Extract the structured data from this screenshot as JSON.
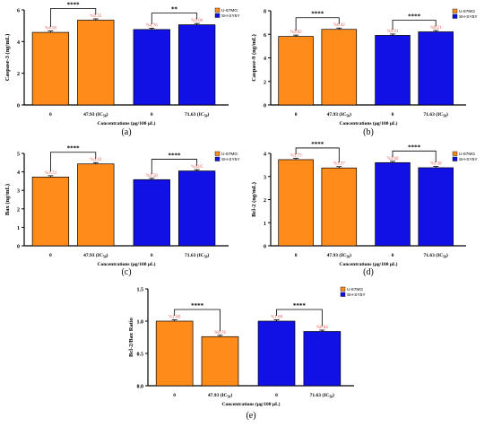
{
  "colors": {
    "series1": "#FF8C1A",
    "series2": "#1111E6",
    "value_label": "#E8574F",
    "axis": "#000000"
  },
  "chart_data": [
    {
      "type": "bar",
      "panel_label": "(a)",
      "ylabel": "Caspase-3 (ng/mL)",
      "xlabel": "Concentrations (µg/100 µL)",
      "ylim": [
        0,
        6
      ],
      "yticks": [
        "0",
        "2",
        "4",
        "6"
      ],
      "legend": [
        "U-87MG",
        "SH-SY5Y"
      ],
      "legend_position": "top-right",
      "groups": [
        {
          "series": "U-87MG",
          "bars": [
            {
              "category": "0",
              "sub": "",
              "value": 4.58,
              "label": "%4.58"
            },
            {
              "category": "47.93 (IC",
              "sub": "50",
              "value": 5.35,
              "label": "%5.35"
            }
          ],
          "significance": "****"
        },
        {
          "series": "SH-SY5Y",
          "bars": [
            {
              "category": "0",
              "sub": "",
              "value": 4.76,
              "label": "%4.76"
            },
            {
              "category": "71.63 (IC",
              "sub": "50",
              "value": 5.06,
              "label": "%5.06"
            }
          ],
          "significance": "**"
        }
      ]
    },
    {
      "type": "bar",
      "panel_label": "(b)",
      "ylabel": "Caspase-9 (ng/mL)",
      "xlabel": "Concentrations (µg/100 µL)",
      "ylim": [
        0,
        8
      ],
      "yticks": [
        "0",
        "2",
        "4",
        "6",
        "8"
      ],
      "legend": [
        "U-87MG",
        "SH-SY5Y"
      ],
      "legend_position": "top-right",
      "groups": [
        {
          "series": "U-87MG",
          "bars": [
            {
              "category": "0",
              "sub": "",
              "value": 5.82,
              "label": "%5.82"
            },
            {
              "category": "47.93 (IC",
              "sub": "50",
              "value": 6.42,
              "label": "%6.42"
            }
          ],
          "significance": "****"
        },
        {
          "series": "SH-SY5Y",
          "bars": [
            {
              "category": "0",
              "sub": "",
              "value": 5.91,
              "label": "%5.91"
            },
            {
              "category": "71.63 (IC",
              "sub": "50",
              "value": 6.21,
              "label": "%6.21"
            }
          ],
          "significance": "****"
        }
      ]
    },
    {
      "type": "bar",
      "panel_label": "(c)",
      "ylabel": "Bax (ng/mL)",
      "xlabel": "Concentrations (µg/100 µL)",
      "ylim": [
        0,
        5
      ],
      "yticks": [
        "0",
        "1",
        "2",
        "3",
        "4",
        "5"
      ],
      "legend": [
        "U-87MG",
        "SH-SY5Y"
      ],
      "legend_position": "top-right",
      "groups": [
        {
          "series": "U-87MG",
          "bars": [
            {
              "category": "0",
              "sub": "",
              "value": 3.72,
              "label": "%3.72"
            },
            {
              "category": "47.93 (IC",
              "sub": "50",
              "value": 4.43,
              "label": "%4.43"
            }
          ],
          "significance": "****"
        },
        {
          "series": "SH-SY5Y",
          "bars": [
            {
              "category": "0",
              "sub": "",
              "value": 3.58,
              "label": "%3.58"
            },
            {
              "category": "71.63 (IC",
              "sub": "50",
              "value": 4.05,
              "label": "%4.05"
            }
          ],
          "significance": "****"
        }
      ]
    },
    {
      "type": "bar",
      "panel_label": "(d)",
      "ylabel": "Bcl-2 (ng/mL)",
      "xlabel": "Concentrations (µg/100 µL)",
      "ylim": [
        0,
        4
      ],
      "yticks": [
        "0",
        "1",
        "2",
        "3",
        "4"
      ],
      "legend": [
        "U-87MG",
        "SH-SY5Y"
      ],
      "legend_position": "top-right",
      "groups": [
        {
          "series": "U-87MG",
          "bars": [
            {
              "category": "0",
              "sub": "",
              "value": 3.73,
              "label": "%3.73"
            },
            {
              "category": "47.93 (IC",
              "sub": "50",
              "value": 3.37,
              "label": "%3.37"
            }
          ],
          "significance": "****"
        },
        {
          "series": "SH-SY5Y",
          "bars": [
            {
              "category": "0",
              "sub": "",
              "value": 3.6,
              "label": "%3.60"
            },
            {
              "category": "71.63 (IC",
              "sub": "50",
              "value": 3.38,
              "label": "%3.38"
            }
          ],
          "significance": "****"
        }
      ]
    },
    {
      "type": "bar",
      "panel_label": "(e)",
      "ylabel": "Bcl-2/Bax Ratio",
      "xlabel": "Concentrations (µg/100 µL)",
      "ylim": [
        0,
        1.5
      ],
      "yticks": [
        "0.0",
        "0.5",
        "1.0",
        "1.5"
      ],
      "legend": [
        "U-87MG",
        "SH-SY5Y"
      ],
      "legend_position": "top-right",
      "groups": [
        {
          "series": "U-87MG",
          "bars": [
            {
              "category": "0",
              "sub": "",
              "value": 1.0,
              "label": "%1.00"
            },
            {
              "category": "47.93 (IC",
              "sub": "50",
              "value": 0.76,
              "label": "%0.76"
            }
          ],
          "significance": "****"
        },
        {
          "series": "SH-SY5Y",
          "bars": [
            {
              "category": "0",
              "sub": "",
              "value": 1.0,
              "label": "%1.00"
            },
            {
              "category": "71.63 (IC",
              "sub": "50",
              "value": 0.84,
              "label": "%0.84"
            }
          ],
          "significance": "****"
        }
      ]
    }
  ]
}
